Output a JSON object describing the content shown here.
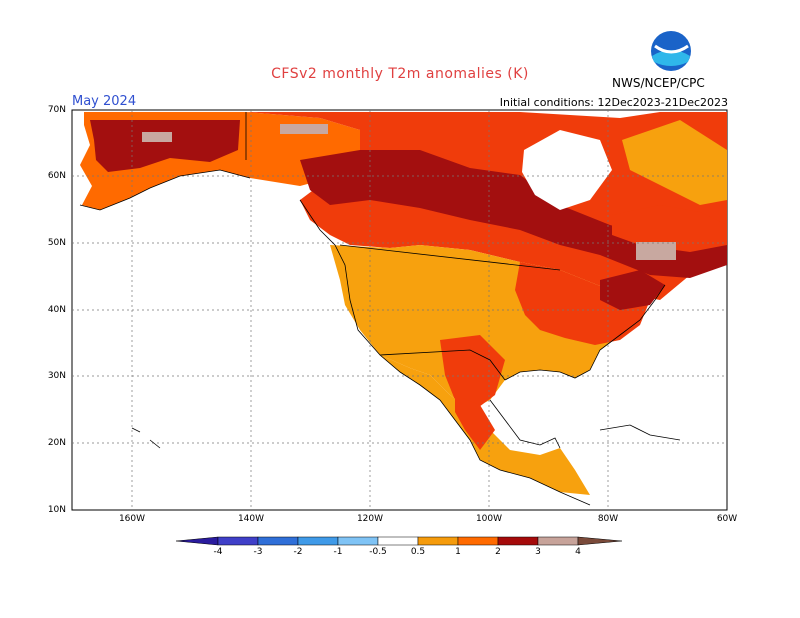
{
  "title": "CFSv2 monthly T2m anomalies (K)",
  "valid_month": "May 2024",
  "initial_conditions": "Initial conditions: 12Dec2023-21Dec2023",
  "agency": "NWS/NCEP/CPC",
  "logo_text": "NOAA",
  "map": {
    "projection": "lat-lon",
    "lon_range": [
      "170W",
      "60W"
    ],
    "lat_range": [
      "10N",
      "70N"
    ],
    "grid": true,
    "lat_labels": [
      "70N",
      "60N",
      "50N",
      "40N",
      "30N",
      "20N",
      "10N"
    ],
    "lon_labels": [
      "160W",
      "140W",
      "120W",
      "100W",
      "80W",
      "60W"
    ]
  },
  "colorbar": {
    "labels": [
      "-4",
      "-3",
      "-2",
      "-1",
      "-0.5",
      "0.5",
      "1",
      "2",
      "3",
      "4"
    ],
    "colors": [
      "#2a1b9e",
      "#3f3fc8",
      "#2f6fd8",
      "#3f9ae8",
      "#7fc3f5",
      "#ffffff",
      "#f59b0c",
      "#ff6a00",
      "#ef3a0e",
      "#a50a0a",
      "#c7a39a",
      "#7a4a3a"
    ]
  },
  "anomaly_colors": {
    "0.5-1": "#f7a10e",
    "1-2": "#ff6a00",
    "2-3": "#f03c0b",
    "3-4": "#a30f0f",
    "4+": "#c8a8a0"
  }
}
